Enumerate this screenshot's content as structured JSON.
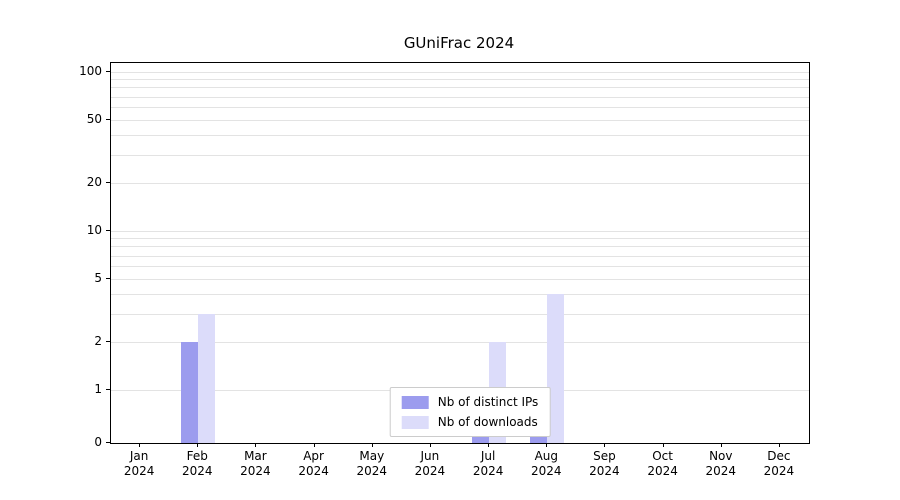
{
  "chart": {
    "title": "GUniFrac 2024",
    "background_color": "#ffffff",
    "gridline_color": "#e3e3e3"
  },
  "chart_data": {
    "type": "bar",
    "title": "GUniFrac 2024",
    "categories": [
      "Jan",
      "Feb",
      "Mar",
      "Apr",
      "May",
      "Jun",
      "Jul",
      "Aug",
      "Sep",
      "Oct",
      "Nov",
      "Dec"
    ],
    "category_year": "2024",
    "series": [
      {
        "name": "Nb of distinct IPs",
        "color": "#9c9cee",
        "values": [
          0,
          2,
          0,
          0,
          0,
          0,
          1,
          1,
          0,
          0,
          0,
          0
        ]
      },
      {
        "name": "Nb of downloads",
        "color": "#dcdcfa",
        "values": [
          0,
          3,
          0,
          0,
          0,
          0,
          2,
          4,
          0,
          0,
          0,
          0
        ]
      }
    ],
    "yscale": "log",
    "ylim": [
      0,
      100
    ],
    "ytick_labels": [
      100,
      50,
      20,
      10,
      5,
      2,
      1,
      0
    ],
    "grid_values": [
      1,
      2,
      3,
      4,
      5,
      6,
      7,
      8,
      9,
      10,
      20,
      30,
      40,
      50,
      60,
      70,
      80,
      90,
      100
    ],
    "grid": true,
    "legend_position": "bottom-center"
  }
}
